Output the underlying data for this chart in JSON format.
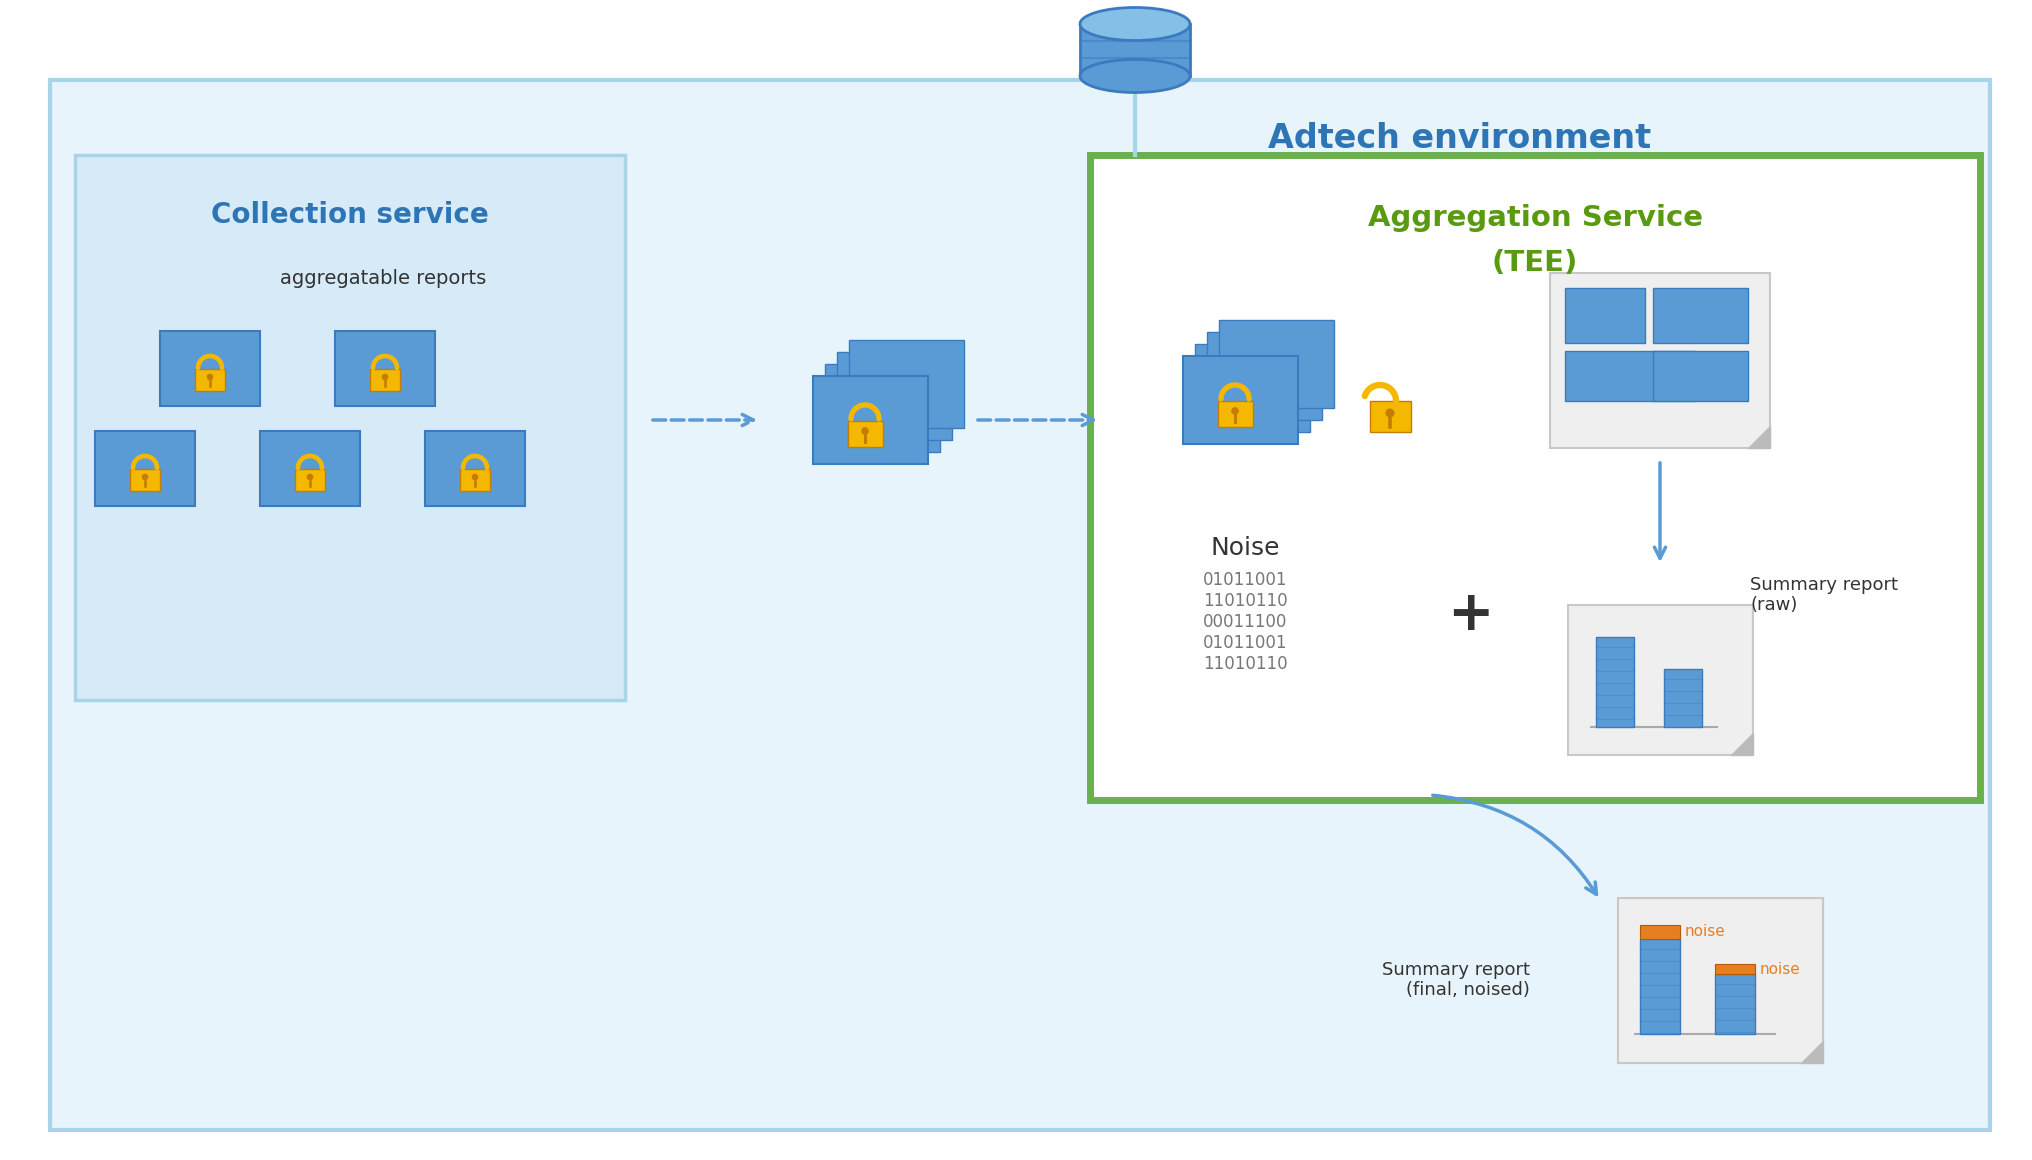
{
  "bg_color": "#ffffff",
  "adtech_fill": "#e8f4fb",
  "adtech_border": "#a8d4ea",
  "collection_fill": "#d6ebf7",
  "collection_border": "#a8d4ea",
  "tee_fill": "#ffffff",
  "tee_border": "#6ab04c",
  "medium_blue": "#5b9bd5",
  "dark_blue": "#3a7abf",
  "card_shadow": "#7aaacf",
  "lock_yellow": "#f5b800",
  "lock_dark": "#c47d00",
  "arrow_color": "#5b9bd5",
  "title_blue": "#2e75b6",
  "title_green": "#5a9a10",
  "doc_gray": "#efefef",
  "doc_border": "#c8c8c8",
  "bar_blue": "#5b9bd5",
  "bar_border": "#3a7abf",
  "noise_orange": "#e67e22",
  "text_dark": "#333333",
  "text_gray": "#777777",
  "adtech_title": "Adtech environment",
  "collection_title": "Collection service",
  "aggregation_title_1": "Aggregation Service",
  "aggregation_title_2": "(TEE)",
  "aggregatable_label": "aggregatable reports",
  "noise_label": "Noise",
  "noise_binary": "01011001\n11010110\n00011100\n01011001\n11010110",
  "summary_raw_label": "Summary report\n(raw)",
  "summary_final_label": "Summary report\n(final, noised)",
  "noise_tag": "noise"
}
